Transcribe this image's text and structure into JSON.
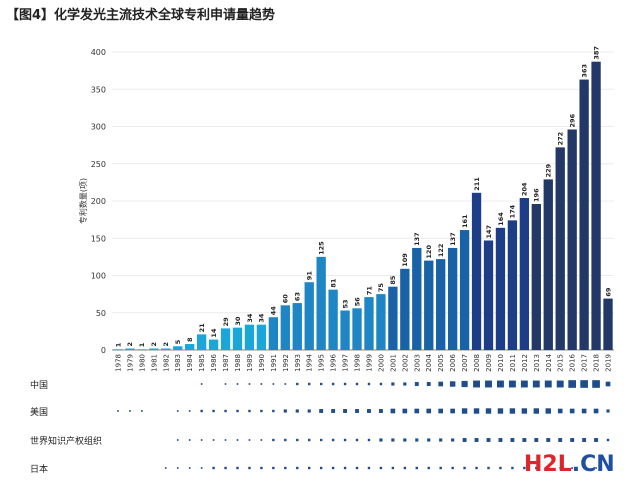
{
  "chart_data": {
    "type": "bar",
    "title": "【图4】化学发光主流技术全球专利申请量趋势",
    "ylabel": "专利数量(项)",
    "xlabel": "",
    "ylim": [
      0,
      400
    ],
    "yticks": [
      0,
      50,
      100,
      150,
      200,
      250,
      300,
      350,
      400
    ],
    "grid": true,
    "categories": [
      "1978",
      "1979",
      "1980",
      "1981",
      "1982",
      "1983",
      "1984",
      "1985",
      "1986",
      "1987",
      "1988",
      "1989",
      "1990",
      "1991",
      "1992",
      "1993",
      "1994",
      "1995",
      "1996",
      "1997",
      "1998",
      "1999",
      "2000",
      "2001",
      "2002",
      "2003",
      "2004",
      "2005",
      "2006",
      "2007",
      "2008",
      "2009",
      "2010",
      "2011",
      "2012",
      "2013",
      "2014",
      "2015",
      "2016",
      "2017",
      "2018",
      "2019"
    ],
    "values": [
      1,
      2,
      1,
      2,
      2,
      5,
      8,
      21,
      14,
      29,
      30,
      34,
      34,
      44,
      60,
      63,
      91,
      125,
      81,
      53,
      56,
      71,
      75,
      85,
      109,
      137,
      120,
      122,
      137,
      161,
      211,
      147,
      164,
      174,
      204,
      196,
      229,
      272,
      296,
      363,
      387,
      69
    ],
    "bar_color_ranges": [
      {
        "from": "1978",
        "to": "1990",
        "color": "#1aa6d9"
      },
      {
        "from": "1991",
        "to": "2000",
        "color": "#1f86c6"
      },
      {
        "from": "2001",
        "to": "2007",
        "color": "#1a62a8"
      },
      {
        "from": "2008",
        "to": "2012",
        "color": "#1d3e86"
      },
      {
        "from": "2013",
        "to": "2019",
        "color": "#233866"
      }
    ],
    "country_rows": [
      {
        "label": "中国",
        "values": [
          0,
          0,
          0,
          0,
          0,
          0,
          0,
          1,
          0,
          1,
          1,
          1,
          1,
          1,
          1,
          2,
          2,
          2,
          2,
          2,
          2,
          2,
          2,
          3,
          3,
          4,
          4,
          5,
          6,
          7,
          8,
          8,
          8,
          8,
          8,
          8,
          8,
          8,
          9,
          9,
          9,
          5
        ]
      },
      {
        "label": "美国",
        "values": [
          1,
          1,
          1,
          0,
          0,
          1,
          1,
          2,
          2,
          2,
          2,
          2,
          2,
          2,
          3,
          3,
          3,
          4,
          4,
          4,
          4,
          4,
          4,
          5,
          5,
          5,
          5,
          5,
          5,
          6,
          6,
          6,
          6,
          6,
          6,
          6,
          6,
          5,
          5,
          5,
          5,
          3
        ]
      },
      {
        "label": "世界知识产权组织",
        "values": [
          0,
          0,
          0,
          0,
          0,
          1,
          1,
          1,
          1,
          1,
          1,
          1,
          1,
          2,
          2,
          2,
          2,
          2,
          2,
          2,
          2,
          2,
          3,
          3,
          3,
          3,
          3,
          3,
          3,
          4,
          4,
          4,
          4,
          4,
          4,
          4,
          4,
          4,
          4,
          4,
          4,
          2
        ]
      },
      {
        "label": "日本",
        "values": [
          0,
          0,
          0,
          0,
          1,
          1,
          1,
          1,
          2,
          2,
          2,
          2,
          2,
          2,
          2,
          2,
          2,
          2,
          2,
          2,
          2,
          2,
          2,
          2,
          2,
          2,
          2,
          2,
          2,
          2,
          2,
          2,
          2,
          2,
          2,
          2,
          2,
          1,
          1,
          1,
          1,
          1
        ]
      }
    ],
    "country_row_color": "#1f4d8a"
  }
}
